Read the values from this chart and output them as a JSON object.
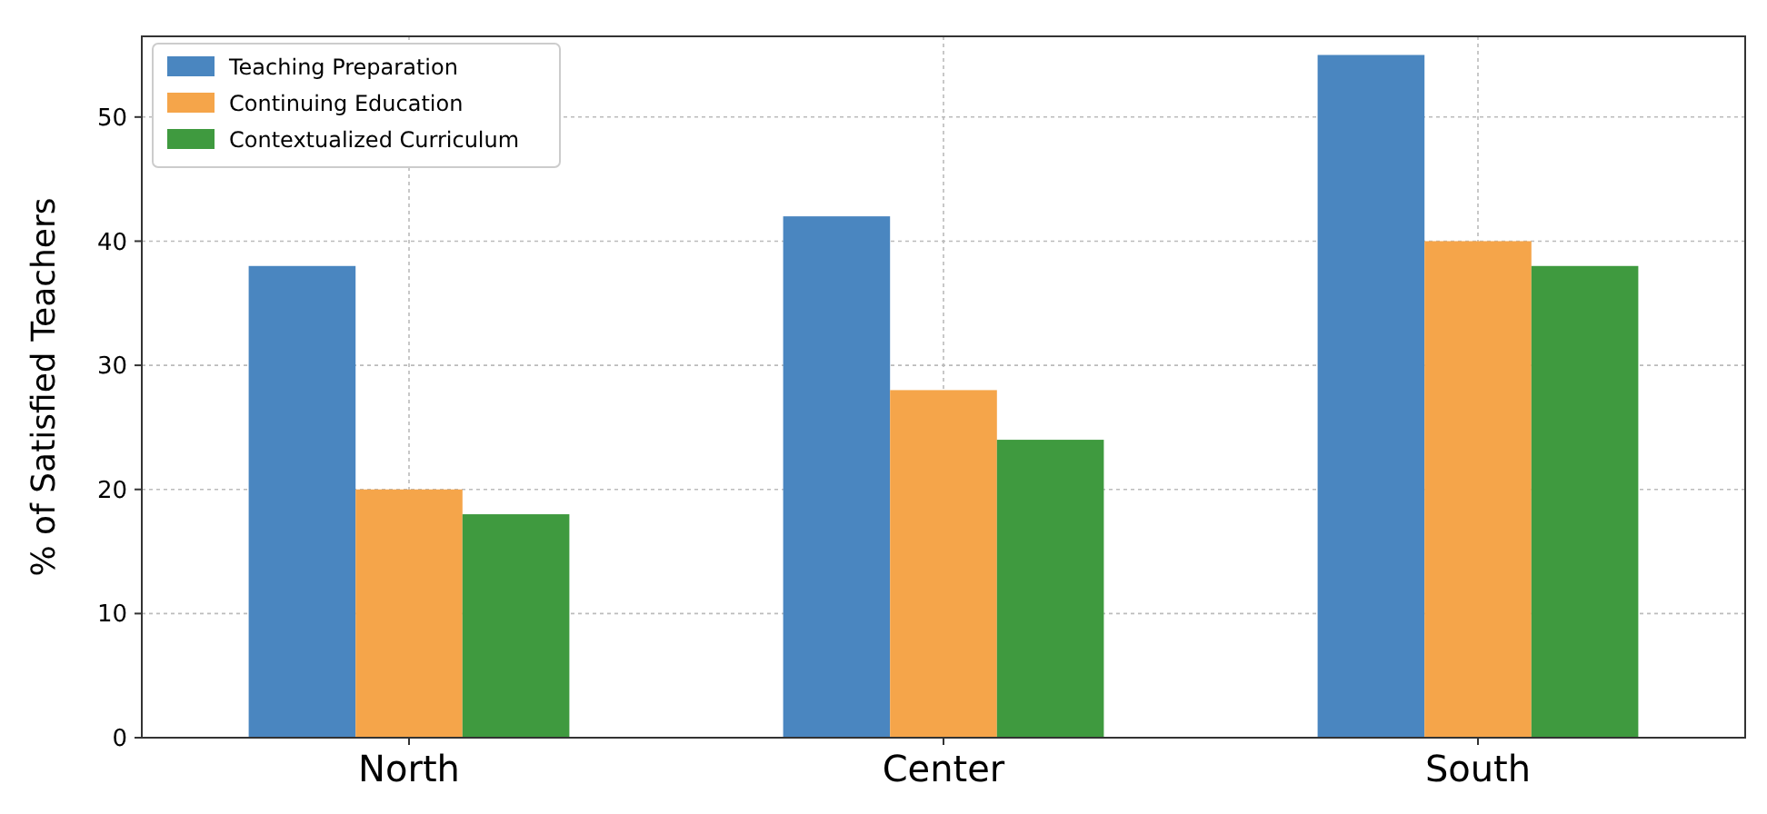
{
  "chart_data": {
    "type": "bar",
    "ylabel": "% of Satisfied Teachers",
    "categories": [
      "North",
      "Center",
      "South"
    ],
    "series": [
      {
        "name": "Teaching Preparation",
        "color": "#4a86c0",
        "values": [
          38,
          42,
          55
        ]
      },
      {
        "name": "Continuing Education",
        "color": "#f5a54a",
        "values": [
          20,
          28,
          40
        ]
      },
      {
        "name": "Contextualized Curriculum",
        "color": "#3f9a3f",
        "values": [
          18,
          24,
          38
        ]
      }
    ],
    "ylim": [
      0,
      56.5
    ],
    "yticks": [
      0,
      10,
      20,
      30,
      40,
      50
    ],
    "grid": true,
    "legend": "top left"
  }
}
